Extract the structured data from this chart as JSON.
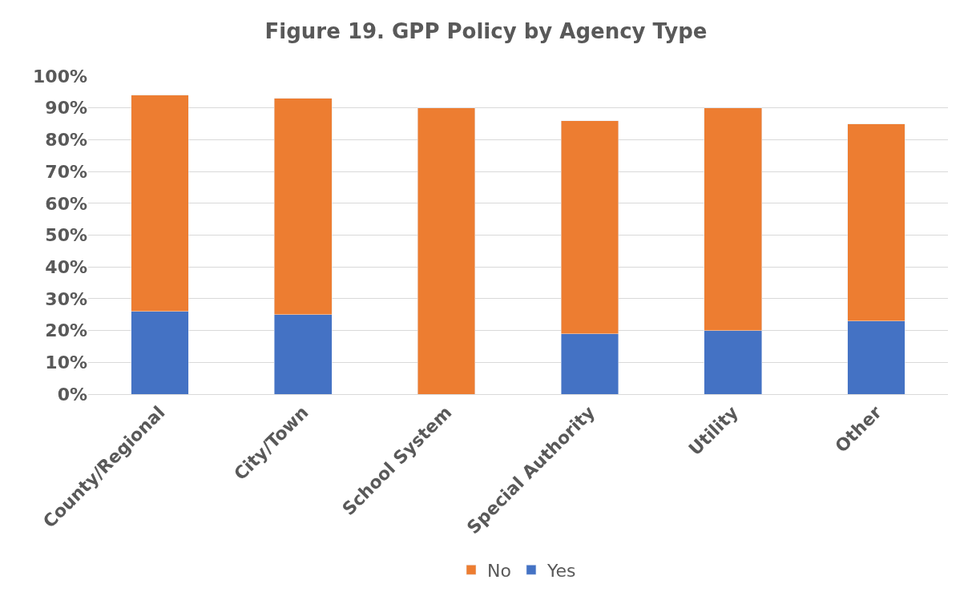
{
  "chart_data": {
    "type": "bar",
    "title": "Figure 19. GPP Policy by Agency Type",
    "stacked": true,
    "categories": [
      "County/Regional",
      "City/Town",
      "School System",
      "Special Authority",
      "Utility",
      "Other"
    ],
    "series": [
      {
        "name": "Yes",
        "color": "#4472c4",
        "values": [
          26,
          25,
          0,
          19,
          20,
          23
        ]
      },
      {
        "name": "No",
        "color": "#ed7d31",
        "values": [
          68,
          68,
          90,
          67,
          70,
          62
        ]
      }
    ],
    "ylim": [
      0,
      100
    ],
    "yticks": [
      {
        "value": 0,
        "label": "0%"
      },
      {
        "value": 10,
        "label": "10%"
      },
      {
        "value": 20,
        "label": "20%"
      },
      {
        "value": 30,
        "label": "30%"
      },
      {
        "value": 40,
        "label": "40%"
      },
      {
        "value": 50,
        "label": "50%"
      },
      {
        "value": 60,
        "label": "60%"
      },
      {
        "value": 70,
        "label": "70%"
      },
      {
        "value": 80,
        "label": "80%"
      },
      {
        "value": 90,
        "label": "90%"
      },
      {
        "value": 100,
        "label": "100%"
      }
    ],
    "grid": "y",
    "legend": "bottom"
  }
}
